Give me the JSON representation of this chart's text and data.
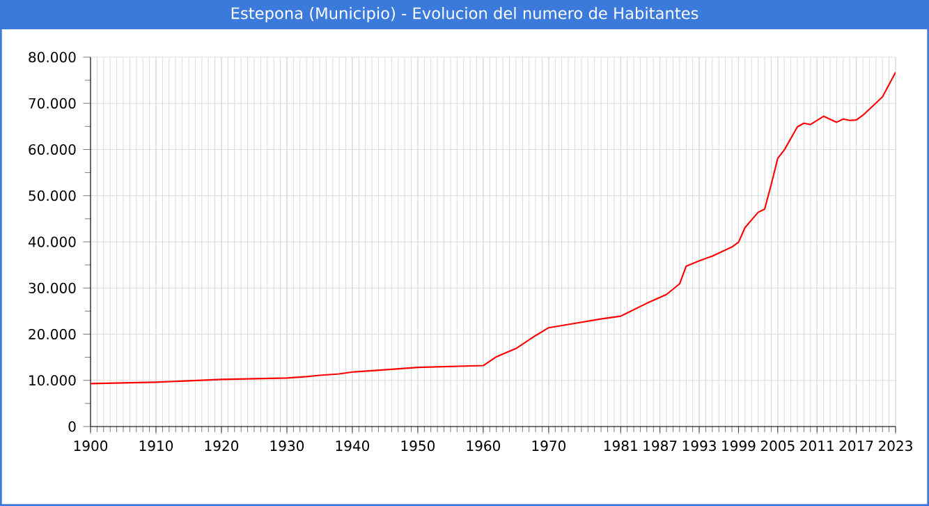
{
  "chart_data": {
    "type": "line",
    "title": "Estepona (Municipio) - Evolucion del numero de Habitantes",
    "x": [
      1900,
      1910,
      1915,
      1920,
      1930,
      1933,
      1935,
      1938,
      1940,
      1943,
      1946,
      1950,
      1960,
      1962,
      1965,
      1968,
      1970,
      1973,
      1978,
      1981,
      1982,
      1985,
      1988,
      1990,
      1991,
      1993,
      1995,
      1998,
      1999,
      2000,
      2002,
      2003,
      2004,
      2005,
      2006,
      2008,
      2009,
      2010,
      2012,
      2014,
      2015,
      2016,
      2017,
      2018,
      2021,
      2023
    ],
    "series": [
      {
        "color": "#ff0000",
        "values": [
          9300,
          9600,
          9900,
          10200,
          10500,
          10800,
          11100,
          11400,
          11800,
          12100,
          12400,
          12800,
          13200,
          15100,
          16900,
          19700,
          21400,
          22100,
          23300,
          23900,
          24600,
          26700,
          28600,
          30900,
          34700,
          35900,
          36900,
          38900,
          39900,
          43100,
          46400,
          47100,
          52400,
          58100,
          59900,
          64900,
          65700,
          65400,
          67200,
          65900,
          66600,
          66300,
          66400,
          67400,
          71400,
          76700
        ]
      }
    ],
    "xlim": [
      1900,
      2023
    ],
    "xticks": [
      1900,
      1910,
      1920,
      1930,
      1940,
      1950,
      1960,
      1970,
      1981,
      1987,
      1993,
      1999,
      2005,
      2011,
      2017,
      2023
    ],
    "ylim": [
      0,
      80000
    ],
    "yticks": [
      0,
      {
        "value": 10000,
        "label": "10.000"
      },
      {
        "value": 20000,
        "label": "20.000"
      },
      {
        "value": 30000,
        "label": "30.000"
      },
      {
        "value": 40000,
        "label": "40.000"
      },
      {
        "value": 50000,
        "label": "50.000"
      },
      {
        "value": 60000,
        "label": "60.000"
      },
      {
        "value": 70000,
        "label": "70.000"
      },
      {
        "value": 80000,
        "label": "80.000"
      }
    ],
    "grid": true,
    "marker": "none",
    "line_style": "solid"
  }
}
